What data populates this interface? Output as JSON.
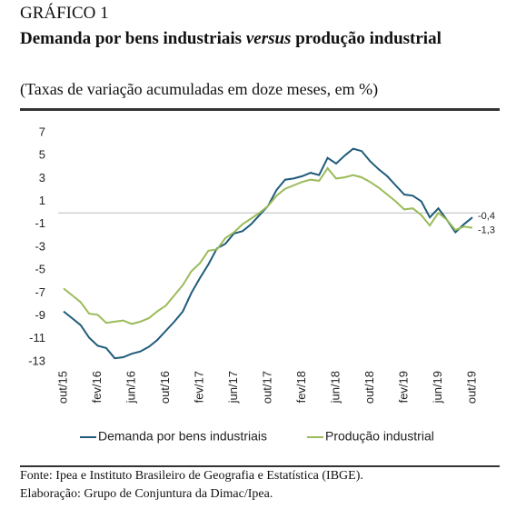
{
  "kicker": "GRÁFICO 1",
  "chart_data": {
    "type": "line",
    "title": [
      "Demanda por bens industriais ",
      "versus",
      " produção industrial"
    ],
    "subtitle": "(Taxas de variação acumuladas em doze meses, em %)",
    "categories": [
      "out/15",
      null,
      null,
      null,
      "fev/16",
      null,
      null,
      null,
      "jun/16",
      null,
      null,
      null,
      "out/16",
      null,
      null,
      null,
      "fev/17",
      null,
      null,
      null,
      "jun/17",
      null,
      null,
      null,
      "out/17",
      null,
      null,
      null,
      "fev/18",
      null,
      null,
      null,
      "jun/18",
      null,
      null,
      null,
      "out/18",
      null,
      null,
      null,
      "fev/19",
      null,
      null,
      null,
      "jun/19",
      null,
      null,
      null,
      "out/19"
    ],
    "series": [
      {
        "name": "Demanda por bens industriais",
        "color": "#1f5b7a",
        "end_label": "-0,4",
        "values": [
          -8.6,
          -9.2,
          -9.8,
          -10.9,
          -11.6,
          -11.8,
          -12.7,
          -12.6,
          -12.3,
          -12.1,
          -11.7,
          -11.1,
          -10.3,
          -9.5,
          -8.6,
          -7.0,
          -5.7,
          -4.5,
          -3.1,
          -2.7,
          -1.8,
          -1.6,
          -1.0,
          -0.2,
          0.6,
          2.0,
          2.9,
          3.0,
          3.2,
          3.5,
          3.3,
          4.8,
          4.3,
          5.0,
          5.6,
          5.4,
          4.5,
          3.8,
          3.2,
          2.4,
          1.6,
          1.5,
          1.0,
          -0.4,
          0.4,
          -0.6,
          -1.7,
          -1.0,
          -0.4
        ]
      },
      {
        "name": "Produção industrial",
        "color": "#9bbb59",
        "end_label": "-1,3",
        "values": [
          -6.6,
          -7.2,
          -7.8,
          -8.8,
          -8.9,
          -9.6,
          -9.5,
          -9.4,
          -9.7,
          -9.5,
          -9.2,
          -8.6,
          -8.1,
          -7.2,
          -6.3,
          -5.1,
          -4.4,
          -3.3,
          -3.2,
          -2.2,
          -1.7,
          -1.0,
          -0.5,
          0.0,
          0.6,
          1.5,
          2.1,
          2.4,
          2.7,
          2.9,
          2.8,
          3.9,
          3.0,
          3.1,
          3.3,
          3.1,
          2.7,
          2.2,
          1.6,
          1.0,
          0.3,
          0.4,
          -0.2,
          -1.1,
          0.0,
          -0.6,
          -1.5,
          -1.2,
          -1.3
        ]
      }
    ],
    "ylim": [
      -13,
      7
    ],
    "yticks": [
      -13,
      -11,
      -9,
      -7,
      -5,
      -3,
      -1,
      1,
      3,
      5,
      7
    ],
    "zero_line": true,
    "legend": "bottom"
  },
  "footer": [
    "Fonte: Ipea e Instituto Brasileiro de Geografia e Estatística (IBGE).",
    "Elaboração: Grupo de Conjuntura da Dimac/Ipea."
  ]
}
